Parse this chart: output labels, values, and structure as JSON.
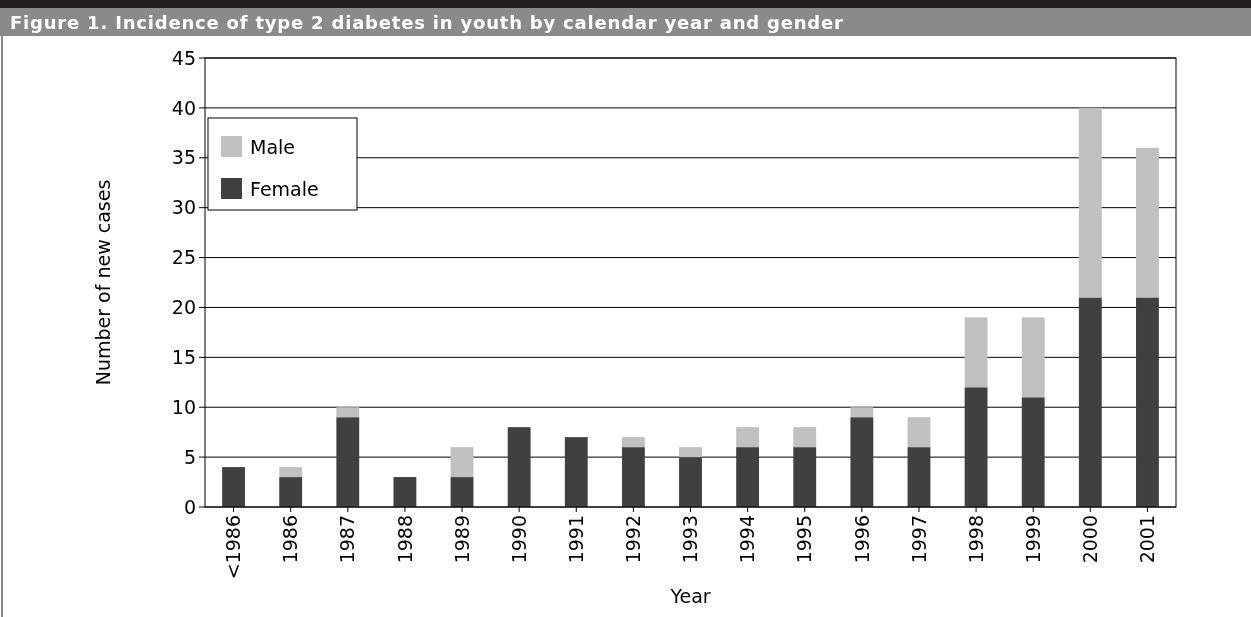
{
  "chart_data": {
    "type": "bar",
    "title": "Figure 1. Incidence of type 2 diabetes in youth by calendar year and gender",
    "xlabel": "Year",
    "ylabel": "Number of new cases",
    "categories": [
      "<1986",
      "1986",
      "1987",
      "1988",
      "1989",
      "1990",
      "1991",
      "1992",
      "1993",
      "1994",
      "1995",
      "1996",
      "1997",
      "1998",
      "1999",
      "2000",
      "2001"
    ],
    "stacked": true,
    "series": [
      {
        "name": "Female",
        "color": "#404040",
        "values": [
          4,
          3,
          9,
          3,
          3,
          8,
          7,
          6,
          5,
          6,
          6,
          9,
          6,
          12,
          11,
          21,
          21
        ]
      },
      {
        "name": "Male",
        "color": "#c0c0c0",
        "values": [
          0,
          1,
          1,
          0,
          3,
          0,
          0,
          1,
          1,
          2,
          2,
          1,
          3,
          7,
          8,
          19,
          15
        ]
      }
    ],
    "ylim": [
      0,
      45
    ],
    "yticks": [
      0,
      5,
      10,
      15,
      20,
      25,
      30,
      35,
      40,
      45
    ],
    "grid": "y",
    "legend": "top left"
  }
}
